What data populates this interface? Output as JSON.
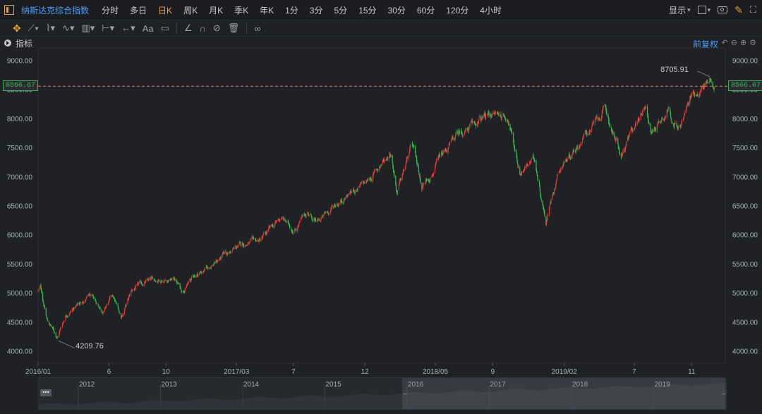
{
  "header": {
    "index_name": "纳斯达克综合指数",
    "periods": [
      "分时",
      "多日",
      "日K",
      "周K",
      "月K",
      "季K",
      "年K",
      "1分",
      "3分",
      "5分",
      "15分",
      "30分",
      "60分",
      "120分",
      "4小时"
    ],
    "active_period": "日K",
    "display_label": "显示"
  },
  "indicator_bar": {
    "label": "指标",
    "adjust_label": "前复权"
  },
  "current_price_tag": "8566.67",
  "colors": {
    "up": "#e23c3c",
    "down": "#2fbf4f",
    "accent": "#e8a23a",
    "link": "#4a9eff",
    "background": "#1f2124"
  },
  "chart_data": {
    "type": "candlestick",
    "title": "",
    "xlabel": "",
    "ylabel": "",
    "ylim": [
      3800,
      9200
    ],
    "yticks": [
      "9000.00",
      "8500.00",
      "8000.00",
      "7500.00",
      "7000.00",
      "6500.00",
      "6000.00",
      "5500.00",
      "5000.00",
      "4500.00",
      "4000.00"
    ],
    "x_range": [
      "2016-01",
      "2019-12"
    ],
    "xticks": [
      {
        "label": "2016/01",
        "date": "2016-01"
      },
      {
        "label": "6",
        "date": "2016-06"
      },
      {
        "label": "10",
        "date": "2016-10"
      },
      {
        "label": "2017/03",
        "date": "2017-03"
      },
      {
        "label": "7",
        "date": "2017-07"
      },
      {
        "label": "12",
        "date": "2017-12"
      },
      {
        "label": "2018/05",
        "date": "2018-05"
      },
      {
        "label": "9",
        "date": "2018-09"
      },
      {
        "label": "2019/02",
        "date": "2019-02"
      },
      {
        "label": "7",
        "date": "2019-07"
      },
      {
        "label": "11",
        "date": "2019-11"
      }
    ],
    "current_price": 8566.67,
    "annotations": [
      {
        "label": "8705.91",
        "date": "2019-12-13",
        "value": 8705.91
      },
      {
        "label": "4209.76",
        "date": "2016-02-11",
        "value": 4209.76
      }
    ],
    "price_path": [
      {
        "date": "2016-01-01",
        "close": 5050
      },
      {
        "date": "2016-01-06",
        "close": 5100
      },
      {
        "date": "2016-01-20",
        "close": 4550
      },
      {
        "date": "2016-02-11",
        "close": 4250
      },
      {
        "date": "2016-03-01",
        "close": 4650
      },
      {
        "date": "2016-04-20",
        "close": 4950
      },
      {
        "date": "2016-05-20",
        "close": 4700
      },
      {
        "date": "2016-06-08",
        "close": 4950
      },
      {
        "date": "2016-06-27",
        "close": 4600
      },
      {
        "date": "2016-07-20",
        "close": 5050
      },
      {
        "date": "2016-08-20",
        "close": 5200
      },
      {
        "date": "2016-09-20",
        "close": 5250
      },
      {
        "date": "2016-10-20",
        "close": 5250
      },
      {
        "date": "2016-11-04",
        "close": 5050
      },
      {
        "date": "2016-11-30",
        "close": 5300
      },
      {
        "date": "2016-12-31",
        "close": 5450
      },
      {
        "date": "2017-02-01",
        "close": 5650
      },
      {
        "date": "2017-03-15",
        "close": 5850
      },
      {
        "date": "2017-04-20",
        "close": 5900
      },
      {
        "date": "2017-06-05",
        "close": 6300
      },
      {
        "date": "2017-07-01",
        "close": 6100
      },
      {
        "date": "2017-08-01",
        "close": 6400
      },
      {
        "date": "2017-08-20",
        "close": 6200
      },
      {
        "date": "2017-10-01",
        "close": 6550
      },
      {
        "date": "2017-11-01",
        "close": 6750
      },
      {
        "date": "2017-12-05",
        "close": 6900
      },
      {
        "date": "2018-01-26",
        "close": 7450
      },
      {
        "date": "2018-02-08",
        "close": 6750
      },
      {
        "date": "2018-03-12",
        "close": 7550
      },
      {
        "date": "2018-04-02",
        "close": 6850
      },
      {
        "date": "2018-05-15",
        "close": 7350
      },
      {
        "date": "2018-06-20",
        "close": 7750
      },
      {
        "date": "2018-07-25",
        "close": 7900
      },
      {
        "date": "2018-08-29",
        "close": 8100
      },
      {
        "date": "2018-10-03",
        "close": 8050
      },
      {
        "date": "2018-10-29",
        "close": 7100
      },
      {
        "date": "2018-11-30",
        "close": 7300
      },
      {
        "date": "2018-12-24",
        "close": 6250
      },
      {
        "date": "2019-01-20",
        "close": 7150
      },
      {
        "date": "2019-02-28",
        "close": 7550
      },
      {
        "date": "2019-04-30",
        "close": 8150
      },
      {
        "date": "2019-06-03",
        "close": 7350
      },
      {
        "date": "2019-07-26",
        "close": 8300
      },
      {
        "date": "2019-08-05",
        "close": 7750
      },
      {
        "date": "2019-09-12",
        "close": 8200
      },
      {
        "date": "2019-10-03",
        "close": 7800
      },
      {
        "date": "2019-11-01",
        "close": 8400
      },
      {
        "date": "2019-12-13",
        "close": 8705
      },
      {
        "date": "2019-12-20",
        "close": 8566
      }
    ]
  },
  "navigator": {
    "years": [
      "2012",
      "2013",
      "2014",
      "2015",
      "2016",
      "2017",
      "2018",
      "2019"
    ],
    "dots": "•••",
    "arrow_left": "←",
    "arrow_right": "→"
  }
}
